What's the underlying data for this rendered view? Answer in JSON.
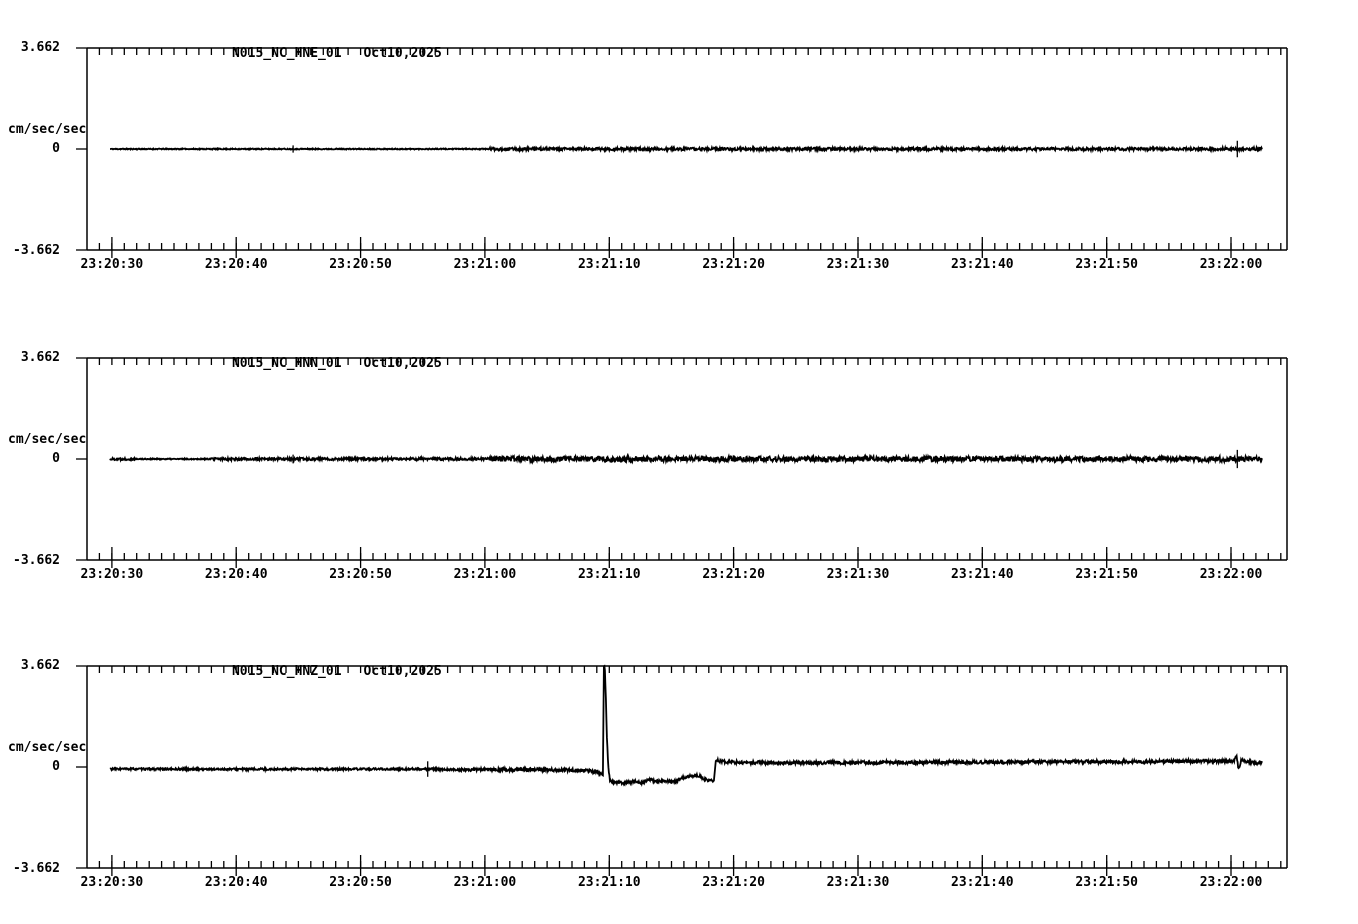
{
  "page": {
    "background": "#ffffff",
    "foreground": "#000000"
  },
  "chart_data": [
    {
      "type": "line",
      "title": "N015_NC_HNE_01",
      "date": "Oct10,2025",
      "ylabel": "cm/sec/sec",
      "ylim": [
        -3.662,
        3.662
      ],
      "xlim_seconds": [
        0,
        96.5
      ],
      "grid": false,
      "yticks": [
        {
          "v": 3.662,
          "label": "3.662"
        },
        {
          "v": 0,
          "label": "0"
        },
        {
          "v": -3.662,
          "label": "-3.662"
        }
      ],
      "xticks": [
        {
          "t": 2,
          "label": "23:20:30"
        },
        {
          "t": 12,
          "label": "23:20:40"
        },
        {
          "t": 22,
          "label": "23:20:50"
        },
        {
          "t": 32,
          "label": "23:21:00"
        },
        {
          "t": 42,
          "label": "23:21:10"
        },
        {
          "t": 52,
          "label": "23:21:20"
        },
        {
          "t": 62,
          "label": "23:21:30"
        },
        {
          "t": 72,
          "label": "23:21:40"
        },
        {
          "t": 82,
          "label": "23:21:50"
        },
        {
          "t": 92,
          "label": "23:22:00"
        }
      ],
      "trace": {
        "t_start": 1.85,
        "t_end": 94.5,
        "seed": 11,
        "keys": [
          [
            1.85,
            0
          ],
          [
            94.5,
            0
          ]
        ],
        "noise": [
          [
            1.85,
            32.4,
            0.018
          ],
          [
            32.4,
            94.5,
            0.05
          ]
        ],
        "spikes": [
          [
            16.57,
            0.13
          ],
          [
            92.5,
            0.3
          ]
        ]
      }
    },
    {
      "type": "line",
      "title": "N015_NC_HNN_01",
      "date": "Oct10,2025",
      "ylabel": "cm/sec/sec",
      "ylim": [
        -3.662,
        3.662
      ],
      "xlim_seconds": [
        0,
        96.5
      ],
      "grid": false,
      "yticks": [
        {
          "v": 3.662,
          "label": "3.662"
        },
        {
          "v": 0,
          "label": "0"
        },
        {
          "v": -3.662,
          "label": "-3.662"
        }
      ],
      "xticks": [
        {
          "t": 2,
          "label": "23:20:30"
        },
        {
          "t": 12,
          "label": "23:20:40"
        },
        {
          "t": 22,
          "label": "23:20:50"
        },
        {
          "t": 32,
          "label": "23:21:00"
        },
        {
          "t": 42,
          "label": "23:21:10"
        },
        {
          "t": 52,
          "label": "23:21:20"
        },
        {
          "t": 62,
          "label": "23:21:30"
        },
        {
          "t": 72,
          "label": "23:21:40"
        },
        {
          "t": 82,
          "label": "23:21:50"
        },
        {
          "t": 92,
          "label": "23:22:00"
        }
      ],
      "trace": {
        "t_start": 1.85,
        "t_end": 94.5,
        "seed": 22,
        "keys": [
          [
            1.85,
            0
          ],
          [
            94.5,
            0
          ]
        ],
        "noise": [
          [
            1.85,
            4,
            0.04
          ],
          [
            4,
            10,
            0.02
          ],
          [
            10,
            32.4,
            0.045
          ],
          [
            32.4,
            94.5,
            0.095
          ]
        ],
        "spikes": [
          [
            16.57,
            0.16
          ],
          [
            92.5,
            0.33
          ]
        ]
      }
    },
    {
      "type": "line",
      "title": "N015_NC_HNZ_01",
      "date": "Oct10,2025",
      "ylabel": "cm/sec/sec",
      "ylim": [
        -3.662,
        3.662
      ],
      "xlim_seconds": [
        0,
        96.5
      ],
      "grid": false,
      "yticks": [
        {
          "v": 3.662,
          "label": "3.662"
        },
        {
          "v": 0,
          "label": "0"
        },
        {
          "v": -3.662,
          "label": "-3.662"
        }
      ],
      "xticks": [
        {
          "t": 2,
          "label": "23:20:30"
        },
        {
          "t": 12,
          "label": "23:20:40"
        },
        {
          "t": 22,
          "label": "23:20:50"
        },
        {
          "t": 32,
          "label": "23:21:00"
        },
        {
          "t": 42,
          "label": "23:21:10"
        },
        {
          "t": 52,
          "label": "23:21:20"
        },
        {
          "t": 62,
          "label": "23:21:30"
        },
        {
          "t": 72,
          "label": "23:21:40"
        },
        {
          "t": 82,
          "label": "23:21:50"
        },
        {
          "t": 92,
          "label": "23:22:00"
        }
      ],
      "trace": {
        "t_start": 1.85,
        "t_end": 94.5,
        "seed": 33,
        "keys": [
          [
            1.85,
            -0.07
          ],
          [
            10,
            -0.08
          ],
          [
            20,
            -0.08
          ],
          [
            27,
            -0.07
          ],
          [
            30,
            -0.1
          ],
          [
            35,
            -0.09
          ],
          [
            40,
            -0.12
          ],
          [
            41.0,
            -0.18
          ],
          [
            41.35,
            -0.25
          ],
          [
            41.5,
            -0.3
          ],
          [
            41.56,
            3.662
          ],
          [
            41.64,
            3.662
          ],
          [
            41.72,
            2.6
          ],
          [
            41.8,
            1.2
          ],
          [
            41.92,
            0.0
          ],
          [
            42.05,
            -0.45
          ],
          [
            42.25,
            -0.55
          ],
          [
            43.2,
            -0.58
          ],
          [
            44.0,
            -0.52
          ],
          [
            44.6,
            -0.58
          ],
          [
            45.3,
            -0.45
          ],
          [
            45.8,
            -0.52
          ],
          [
            46.6,
            -0.5
          ],
          [
            47.3,
            -0.55
          ],
          [
            47.8,
            -0.4
          ],
          [
            48.6,
            -0.33
          ],
          [
            49.2,
            -0.32
          ],
          [
            49.7,
            -0.45
          ],
          [
            50.2,
            -0.5
          ],
          [
            50.42,
            -0.5
          ],
          [
            50.55,
            0.25
          ],
          [
            51.5,
            0.18
          ],
          [
            55,
            0.15
          ],
          [
            62,
            0.16
          ],
          [
            70,
            0.17
          ],
          [
            78,
            0.19
          ],
          [
            85,
            0.19
          ],
          [
            90,
            0.21
          ],
          [
            92.2,
            0.22
          ],
          [
            92.45,
            0.36
          ],
          [
            92.62,
            -0.1
          ],
          [
            92.8,
            0.24
          ],
          [
            93.4,
            0.2
          ],
          [
            94.1,
            0.13
          ],
          [
            94.5,
            0.16
          ]
        ],
        "noise": [
          [
            1.85,
            30,
            0.035
          ],
          [
            30,
            41,
            0.06
          ],
          [
            41,
            50.45,
            0.05
          ],
          [
            50.45,
            94.5,
            0.06
          ]
        ],
        "spikes": [
          [
            27.4,
            0.28
          ]
        ]
      }
    }
  ]
}
